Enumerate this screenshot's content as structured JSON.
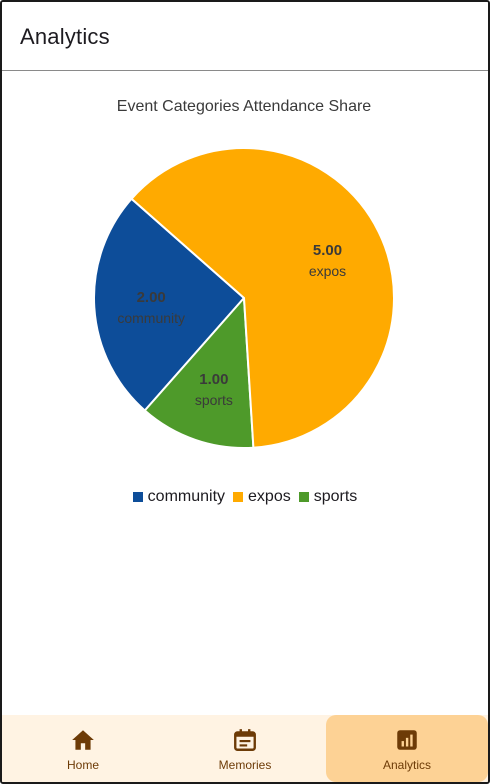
{
  "appbar": {
    "title": "Analytics"
  },
  "chart_data": {
    "type": "pie",
    "title": "Event Categories Attendance Share",
    "slices": [
      {
        "label": "community",
        "value": 2.0,
        "value_label": "2.00",
        "color": "#0d4d99"
      },
      {
        "label": "expos",
        "value": 5.0,
        "value_label": "5.00",
        "color": "#ffaa00"
      },
      {
        "label": "sports",
        "value": 1.0,
        "value_label": "1.00",
        "color": "#4e9a2a"
      }
    ],
    "legend": {
      "position": "bottom",
      "entries": [
        "community",
        "expos",
        "sports"
      ]
    }
  },
  "bottom_nav": {
    "items": [
      {
        "label": "Home",
        "icon": "home-icon",
        "active": false
      },
      {
        "label": "Memories",
        "icon": "calendar-icon",
        "active": false
      },
      {
        "label": "Analytics",
        "icon": "analytics-icon",
        "active": true
      }
    ]
  },
  "colors": {
    "nav_background": "#fff3e3",
    "nav_active": "#fdd295",
    "nav_icon": "#6d3b07"
  }
}
